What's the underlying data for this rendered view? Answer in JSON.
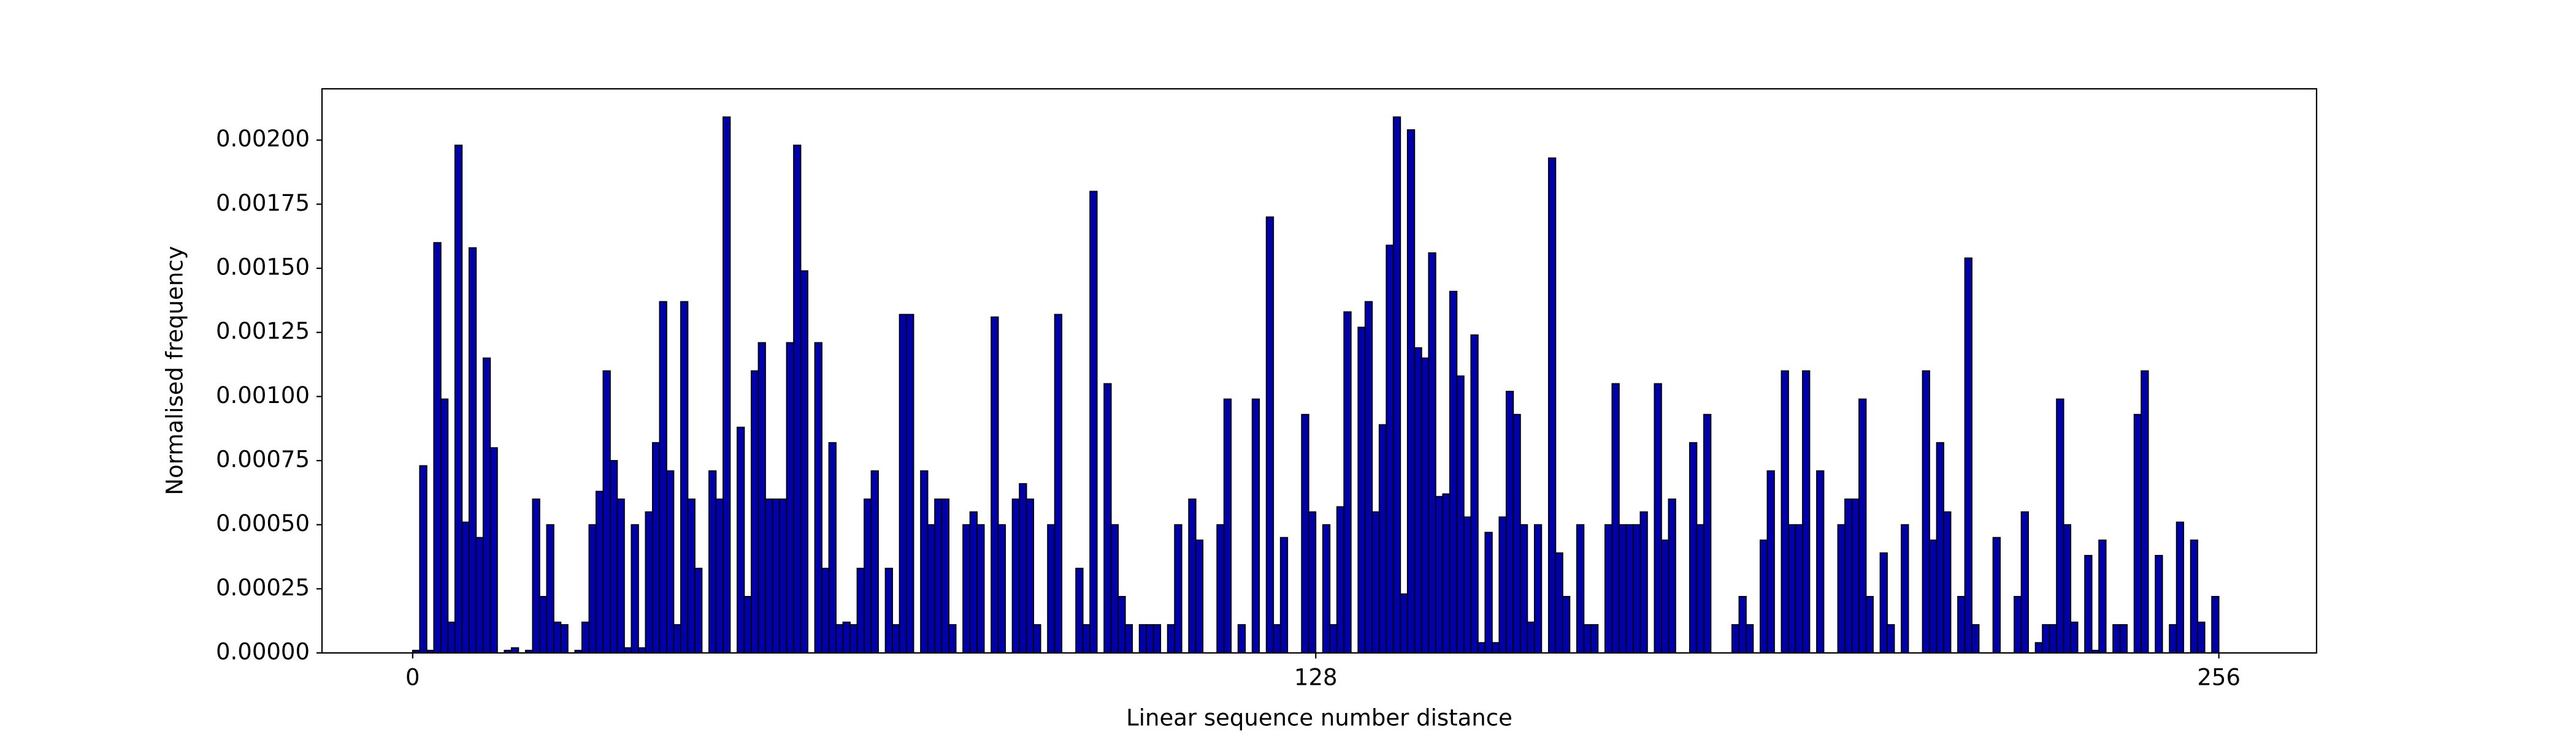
{
  "chart_data": {
    "type": "histogram",
    "xlabel": "Linear sequence number distance",
    "ylabel": "Normalised frequency",
    "color": "#0000aa",
    "edgecolor": "#000000",
    "bins": [
      0,
      1,
      2,
      3,
      4,
      5,
      6,
      7,
      8,
      9,
      10,
      11,
      12,
      13,
      14,
      15,
      16,
      17,
      18,
      19,
      20,
      21,
      22,
      23,
      24,
      25,
      26,
      27,
      28,
      29,
      30,
      31,
      32,
      33,
      34,
      35,
      36,
      37,
      38,
      39,
      40,
      41,
      42,
      43,
      44,
      45,
      46,
      47,
      48,
      49,
      50,
      51,
      52,
      53,
      54,
      55,
      56,
      57,
      58,
      59,
      60,
      61,
      62,
      63,
      64,
      65,
      66,
      67,
      68,
      69,
      70,
      71,
      72,
      73,
      74,
      75,
      76,
      77,
      78,
      79,
      80,
      81,
      82,
      83,
      84,
      85,
      86,
      87,
      88,
      89,
      90,
      91,
      92,
      93,
      94,
      95,
      96,
      97,
      98,
      99,
      100,
      101,
      102,
      103,
      104,
      105,
      106,
      107,
      108,
      109,
      110,
      111,
      112,
      113,
      114,
      115,
      116,
      117,
      118,
      119,
      120,
      121,
      122,
      123,
      124,
      125,
      126,
      127,
      128,
      129,
      130,
      131,
      132,
      133,
      134,
      135,
      136,
      137,
      138,
      139,
      140,
      141,
      142,
      143,
      144,
      145,
      146,
      147,
      148,
      149,
      150,
      151,
      152,
      153,
      154,
      155,
      156,
      157,
      158,
      159,
      160,
      161,
      162,
      163,
      164,
      165,
      166,
      167,
      168,
      169,
      170,
      171,
      172,
      173,
      174,
      175,
      176,
      177,
      178,
      179,
      180,
      181,
      182,
      183,
      184,
      185,
      186,
      187,
      188,
      189,
      190,
      191,
      192,
      193,
      194,
      195,
      196,
      197,
      198,
      199,
      200,
      201,
      202,
      203,
      204,
      205,
      206,
      207,
      208,
      209,
      210,
      211,
      212,
      213,
      214,
      215,
      216,
      217,
      218,
      219,
      220,
      221,
      222,
      223,
      224,
      225,
      226,
      227,
      228,
      229,
      230,
      231,
      232,
      233,
      234,
      235,
      236,
      237,
      238,
      239,
      240,
      241,
      242,
      243,
      244,
      245,
      246,
      247,
      248,
      249,
      250,
      251,
      252,
      253,
      254,
      255,
      256,
      257
    ],
    "counts": [
      1e-05,
      0.00073,
      1e-05,
      0.0016,
      0.00099,
      0.00012,
      0.00198,
      0.00051,
      0.00158,
      0.00045,
      0.00115,
      0.0008,
      0,
      1e-05,
      2e-05,
      0,
      1e-05,
      0.0006,
      0.00022,
      0.0005,
      0.00012,
      0.00011,
      0,
      1e-05,
      0.00012,
      0.0005,
      0.00063,
      0.0011,
      0.00075,
      0.0006,
      2e-05,
      0.0005,
      2e-05,
      0.00055,
      0.00082,
      0.00137,
      0.00071,
      0.00011,
      0.00137,
      0.0006,
      0.00033,
      0,
      0.00071,
      0.0006,
      0.00209,
      0,
      0.00088,
      0.00022,
      0.0011,
      0.00121,
      0.0006,
      0.0006,
      0.0006,
      0.00121,
      0.00198,
      0.00149,
      0,
      0.00121,
      0.00033,
      0.00082,
      0.00011,
      0.00012,
      0.00011,
      0.00033,
      0.0006,
      0.00071,
      0,
      0.00033,
      0.00011,
      0.00132,
      0.00132,
      0,
      0.00071,
      0.0005,
      0.0006,
      0.0006,
      0.00011,
      0,
      0.0005,
      0.00055,
      0.0005,
      0,
      0.00131,
      0.0005,
      0,
      0.0006,
      0.00066,
      0.0006,
      0.00011,
      0,
      0.0005,
      0.00132,
      0,
      0,
      0.00033,
      0.00011,
      0.0018,
      0,
      0.00105,
      0.0005,
      0.00022,
      0.00011,
      0,
      0.00011,
      0.00011,
      0.00011,
      0,
      0.00011,
      0.0005,
      0,
      0.0006,
      0.00044,
      0,
      0,
      0.0005,
      0.00099,
      0,
      0.00011,
      0,
      0.00099,
      0,
      0.0017,
      0.00011,
      0.00045,
      0,
      0,
      0.00093,
      0.00055,
      0,
      0.0005,
      0.00011,
      0.00057,
      0.00133,
      0,
      0.00127,
      0.00137,
      0.00055,
      0.00089,
      0.00159,
      0.00209,
      0.00023,
      0.00204,
      0.00119,
      0.00115,
      0.00156,
      0.00061,
      0.00062,
      0.00141,
      0.00108,
      0.00053,
      0.00124,
      4e-05,
      0.00047,
      4e-05,
      0.00053,
      0.00102,
      0.00093,
      0.0005,
      0.00012,
      0.0005,
      0,
      0.00193,
      0.00039,
      0.00022,
      0,
      0.0005,
      0.00011,
      0.00011,
      0,
      0.0005,
      0.00105,
      0.0005,
      0.0005,
      0.0005,
      0.00055,
      0,
      0.00105,
      0.00044,
      0.0006,
      0,
      0,
      0.00082,
      0.0005,
      0.00093,
      0,
      0,
      0,
      0.00011,
      0.00022,
      0.00011,
      0,
      0.00044,
      0.00071,
      0,
      0.0011,
      0.0005,
      0.0005,
      0.0011,
      0,
      0.00071,
      0,
      0,
      0.0005,
      0.0006,
      0.0006,
      0.00099,
      0.00022,
      0,
      0.00039,
      0.00011,
      0,
      0.0005,
      0,
      0,
      0.0011,
      0.00044,
      0.00082,
      0.00055,
      0,
      0.00022,
      0.00154,
      0.00011,
      0,
      0,
      0.00045,
      0,
      0,
      0.00022,
      0.00055,
      0,
      4e-05,
      0.00011,
      0.00011,
      0.00099,
      0.0005,
      0.00012,
      0,
      0.00038,
      1e-05,
      0.00044,
      0,
      0.00011,
      0.00011,
      0,
      0.00093,
      0.0011,
      0,
      0.00038,
      0,
      0.00011,
      0.00051,
      0,
      0.00044,
      0.00012,
      0,
      0.00022,
      0
    ],
    "xlim": [
      -12.85,
      269.85
    ],
    "xticks": [
      0,
      128,
      256
    ],
    "ylim": [
      0,
      0.0022
    ],
    "yticks": [
      {
        "value": 0,
        "label": "0.00000"
      },
      {
        "value": 0.00025,
        "label": "0.00025"
      },
      {
        "value": 0.0005,
        "label": "0.00050"
      },
      {
        "value": 0.00075,
        "label": "0.00075"
      },
      {
        "value": 0.001,
        "label": "0.00100"
      },
      {
        "value": 0.00125,
        "label": "0.00125"
      },
      {
        "value": 0.0015,
        "label": "0.00150"
      },
      {
        "value": 0.00175,
        "label": "0.00175"
      },
      {
        "value": 0.002,
        "label": "0.00200"
      }
    ]
  }
}
